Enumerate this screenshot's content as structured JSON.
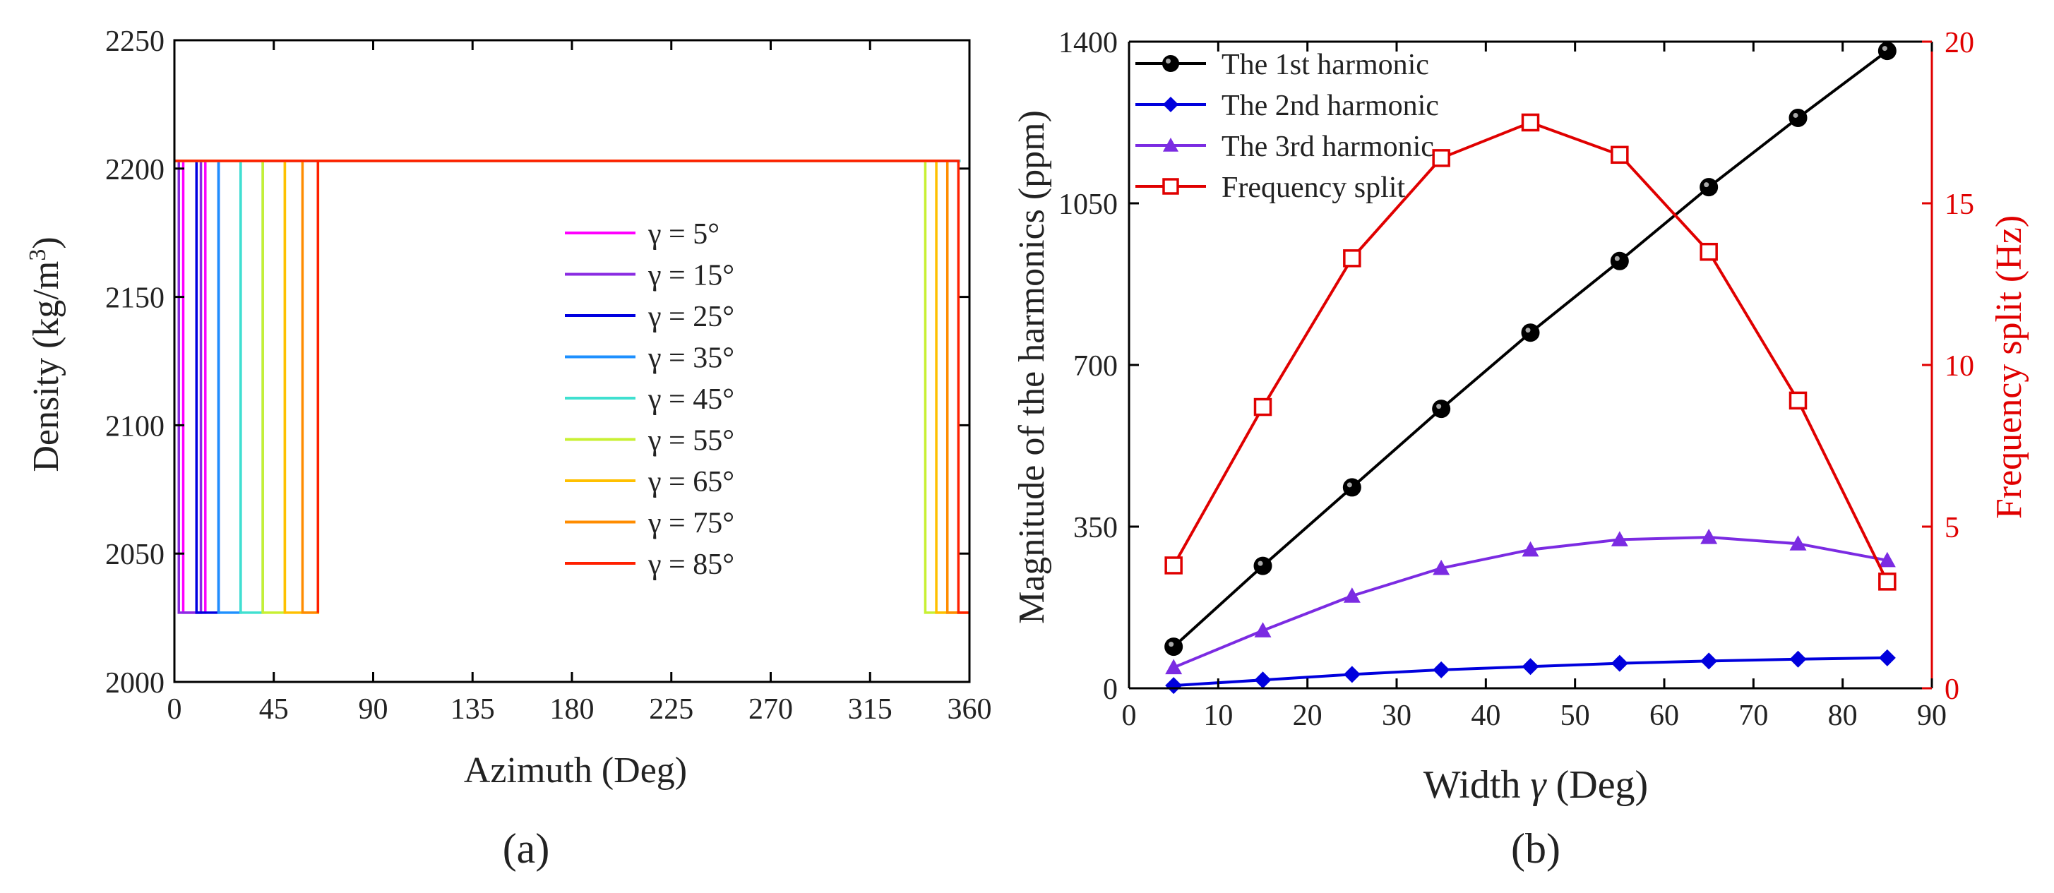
{
  "chart_data": [
    {
      "panel_label": "(a)",
      "type": "line",
      "xlabel": "Azimuth (Deg)",
      "ylabel_main": "Density (kg/m",
      "ylabel_sup": "3",
      "ylabel_tail": ")",
      "xlim": [
        0,
        360
      ],
      "ylim": [
        2000,
        2250
      ],
      "xticks": [
        0,
        45,
        90,
        135,
        180,
        225,
        270,
        315,
        360
      ],
      "yticks": [
        2000,
        2050,
        2100,
        2150,
        2200,
        2250
      ],
      "high_density": 2203,
      "low_density": 2027,
      "legend_placement": "center",
      "series": [
        {
          "name": "γ = 5°",
          "width": 5,
          "color": "#ff00ff"
        },
        {
          "name": "γ = 15°",
          "width": 15,
          "color": "#8a2be2"
        },
        {
          "name": "γ = 25°",
          "width": 25,
          "color": "#0000e0"
        },
        {
          "name": "γ = 35°",
          "width": 35,
          "color": "#1e90ff"
        },
        {
          "name": "γ = 45°",
          "width": 45,
          "color": "#40e0d0"
        },
        {
          "name": "γ = 55°",
          "width": 55,
          "color": "#c8f032"
        },
        {
          "name": "γ = 65°",
          "width": 65,
          "color": "#ffc000"
        },
        {
          "name": "γ = 75°",
          "width": 75,
          "color": "#ff8c00"
        },
        {
          "name": "γ = 85°",
          "width": 85,
          "color": "#ff2000"
        }
      ],
      "segments": {
        "low_start_deg": [
          0,
          10,
          20,
          30,
          40,
          50,
          58,
          65
        ],
        "right_edges_deg": [
          340,
          345,
          350,
          355
        ]
      }
    },
    {
      "panel_label": "(b)",
      "type": "line",
      "xlabel": "Width γ (Deg)",
      "ylabel_left": "Magnitude of the harmonics (ppm)",
      "ylabel_right": "Frequency split (Hz)",
      "xlim": [
        0,
        90
      ],
      "ylim_left": [
        0,
        1400
      ],
      "ylim_right": [
        0,
        20
      ],
      "xticks": [
        0,
        10,
        20,
        30,
        40,
        50,
        60,
        70,
        80,
        90
      ],
      "yticks_left": [
        0,
        350,
        700,
        1050,
        1400
      ],
      "yticks_right": [
        0,
        5,
        10,
        15,
        20
      ],
      "x": [
        5,
        15,
        25,
        35,
        45,
        55,
        65,
        75,
        85
      ],
      "legend_placement": "top-left",
      "series": [
        {
          "name": "The 1st harmonic",
          "axis": "left",
          "color": "#000000",
          "marker": "circle",
          "values": [
            90,
            265,
            435,
            605,
            770,
            925,
            1085,
            1235,
            1380
          ]
        },
        {
          "name": "The 2nd harmonic",
          "axis": "left",
          "color": "#0000dd",
          "marker": "diamond",
          "values": [
            6,
            18,
            30,
            40,
            47,
            54,
            59,
            63,
            66
          ]
        },
        {
          "name": "The 3rd harmonic",
          "axis": "left",
          "color": "#7b2be2",
          "marker": "triangle",
          "values": [
            45,
            125,
            200,
            260,
            300,
            322,
            327,
            313,
            277
          ]
        },
        {
          "name": "Frequency split",
          "axis": "right",
          "color": "#e00000",
          "marker": "square-open",
          "values": [
            3.8,
            8.7,
            13.3,
            16.4,
            17.5,
            16.5,
            13.5,
            8.9,
            3.3
          ]
        }
      ]
    }
  ]
}
